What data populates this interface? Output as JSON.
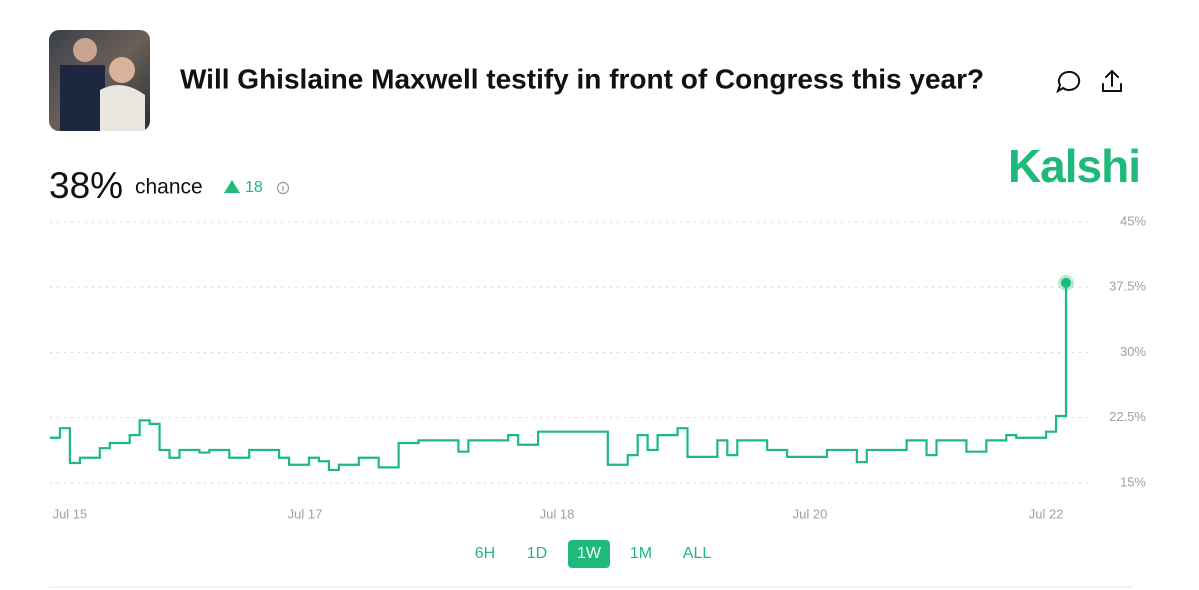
{
  "header": {
    "title": "Will Ghislaine Maxwell testify in front of Congress this year?"
  },
  "summary": {
    "chance": "38%",
    "chance_label": "chance",
    "change": 18
  },
  "brand": "Kalshi",
  "range_buttons": [
    "6H",
    "1D",
    "1W",
    "1M",
    "ALL"
  ],
  "selected_range": "1W",
  "chart_data": {
    "type": "line",
    "step": true,
    "grid": true,
    "series": [
      {
        "color": "#1fba7b",
        "values": [
          20.2,
          21.3,
          17.3,
          17.9,
          17.9,
          19.0,
          19.6,
          19.6,
          20.5,
          22.2,
          21.8,
          18.8,
          17.9,
          18.8,
          18.8,
          18.5,
          18.8,
          18.8,
          17.9,
          17.9,
          18.8,
          18.8,
          18.8,
          17.9,
          17.1,
          17.1,
          17.9,
          17.5,
          16.5,
          17.1,
          17.1,
          17.9,
          17.9,
          16.8,
          16.8,
          19.6,
          19.6,
          19.9,
          19.9,
          19.9,
          19.9,
          18.6,
          19.9,
          19.9,
          19.9,
          19.9,
          20.5,
          19.4,
          19.4,
          20.9,
          20.9,
          20.9,
          20.9,
          20.9,
          20.9,
          20.9,
          17.1,
          17.1,
          18.2,
          20.5,
          18.8,
          20.5,
          20.5,
          21.3,
          18.0,
          18.0,
          18.0,
          19.9,
          18.2,
          19.9,
          19.9,
          19.9,
          18.8,
          18.8,
          18.0,
          18.0,
          18.0,
          18.0,
          18.8,
          18.8,
          18.8,
          17.4,
          18.8,
          18.8,
          18.8,
          18.8,
          19.9,
          19.9,
          18.2,
          19.9,
          19.9,
          19.9,
          18.6,
          18.6,
          19.9,
          19.9,
          20.5,
          20.2,
          20.2,
          20.2,
          20.9,
          22.7,
          38
        ]
      }
    ],
    "xlim": [
      0,
      102
    ],
    "xticks": [
      {
        "value": 2,
        "label": "Jul 15"
      },
      {
        "value": 25.6,
        "label": "Jul 17"
      },
      {
        "value": 50.9,
        "label": "Jul 18"
      },
      {
        "value": 76.3,
        "label": "Jul 20"
      },
      {
        "value": 100,
        "label": "Jul 22"
      }
    ],
    "ylim": [
      15,
      45
    ],
    "yticks": [
      {
        "value": 15,
        "label": "15%"
      },
      {
        "value": 22.5,
        "label": "22.5%"
      },
      {
        "value": 30,
        "label": "30%"
      },
      {
        "value": 37.5,
        "label": "37.5%"
      },
      {
        "value": 45,
        "label": "45%"
      }
    ]
  }
}
